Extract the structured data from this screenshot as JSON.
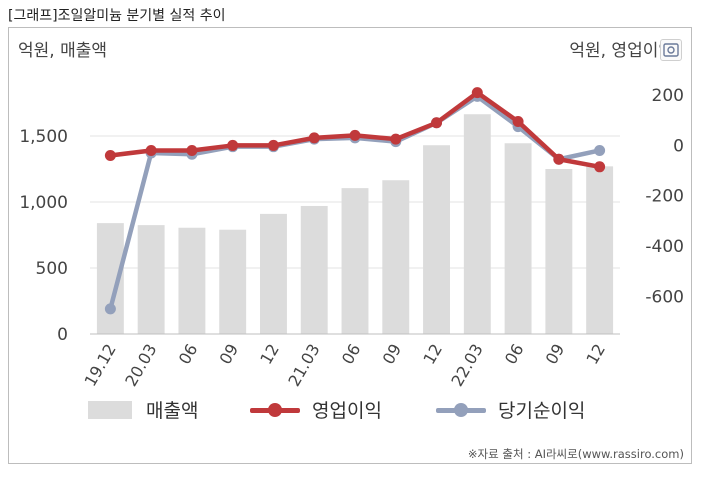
{
  "caption": "[그래프]조일알미늄 분기별 실적 추이",
  "units": {
    "left": "억원, 매출액",
    "right": "억원, 영업이익"
  },
  "source": "※자료 출처 : AI라씨로(www.rassiro.com)",
  "colors": {
    "bar": "#dcdcdc",
    "operating": "#c0393b",
    "net": "#93a0bb",
    "grid": "#e3e3e3",
    "axis": "#bfbfbf"
  },
  "icons": {
    "corner": "image-settings-icon"
  },
  "chart_data": {
    "type": "bar",
    "categories": [
      "19.12",
      "20.03",
      "06",
      "09",
      "12",
      "21.03",
      "06",
      "09",
      "12",
      "22.03",
      "06",
      "09",
      "12"
    ],
    "left_axis": {
      "ylim": [
        0,
        2000
      ],
      "ticks": [
        0,
        500,
        1000,
        1500
      ],
      "tick_labels": [
        "0",
        "500",
        "1,000",
        "1,500"
      ]
    },
    "right_axis": {
      "ylim": [
        -750,
        300
      ],
      "ticks": [
        -600,
        -400,
        -200,
        0,
        200
      ],
      "tick_labels": [
        "-600",
        "-400",
        "-200",
        "0",
        "200"
      ]
    },
    "grid": true,
    "legend_position": "bottom",
    "series": [
      {
        "name": "매출액",
        "type": "bar",
        "axis": "left",
        "values": [
          840,
          825,
          805,
          790,
          910,
          970,
          1105,
          1165,
          1430,
          1665,
          1445,
          1250,
          1270
        ]
      },
      {
        "name": "영업이익",
        "type": "line",
        "axis": "right",
        "values": [
          -40,
          -20,
          -20,
          0,
          0,
          30,
          40,
          25,
          90,
          210,
          95,
          -55,
          -85
        ]
      },
      {
        "name": "당기순이익",
        "type": "line",
        "axis": "right",
        "values": [
          -650,
          -30,
          -35,
          -5,
          -5,
          25,
          30,
          15,
          90,
          195,
          75,
          -55,
          -20
        ]
      }
    ]
  }
}
